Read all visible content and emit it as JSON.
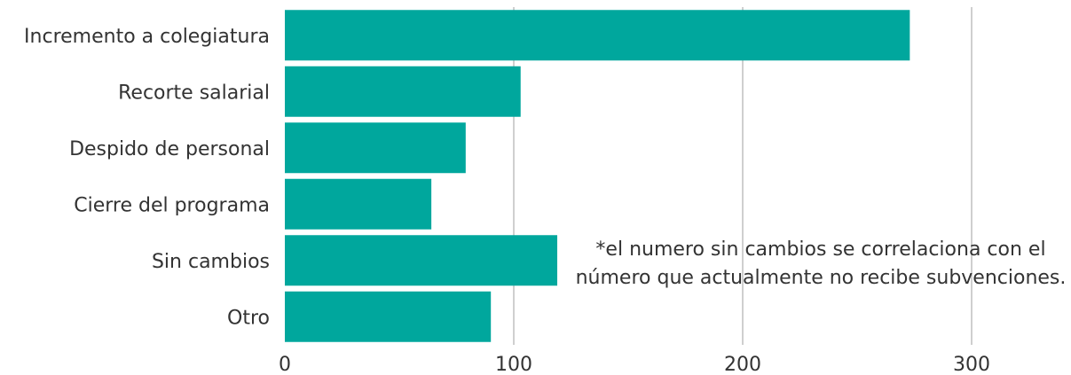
{
  "chart_data": {
    "type": "bar",
    "orientation": "horizontal",
    "categories": [
      "Incremento a colegiatura",
      "Recorte salarial",
      "Despido de personal",
      "Cierre del programa",
      "Sin cambios",
      "Otro"
    ],
    "values": [
      273,
      103,
      79,
      64,
      119,
      90
    ],
    "xlim": [
      0,
      345
    ],
    "xticks": [
      0,
      100,
      200,
      300
    ],
    "grid": true,
    "bar_color": "#00A79D",
    "grid_color": "#bfbfbf",
    "annotation": "*el numero sin cambios se correlaciona con el número que actualmente no recibe subvenciones."
  }
}
